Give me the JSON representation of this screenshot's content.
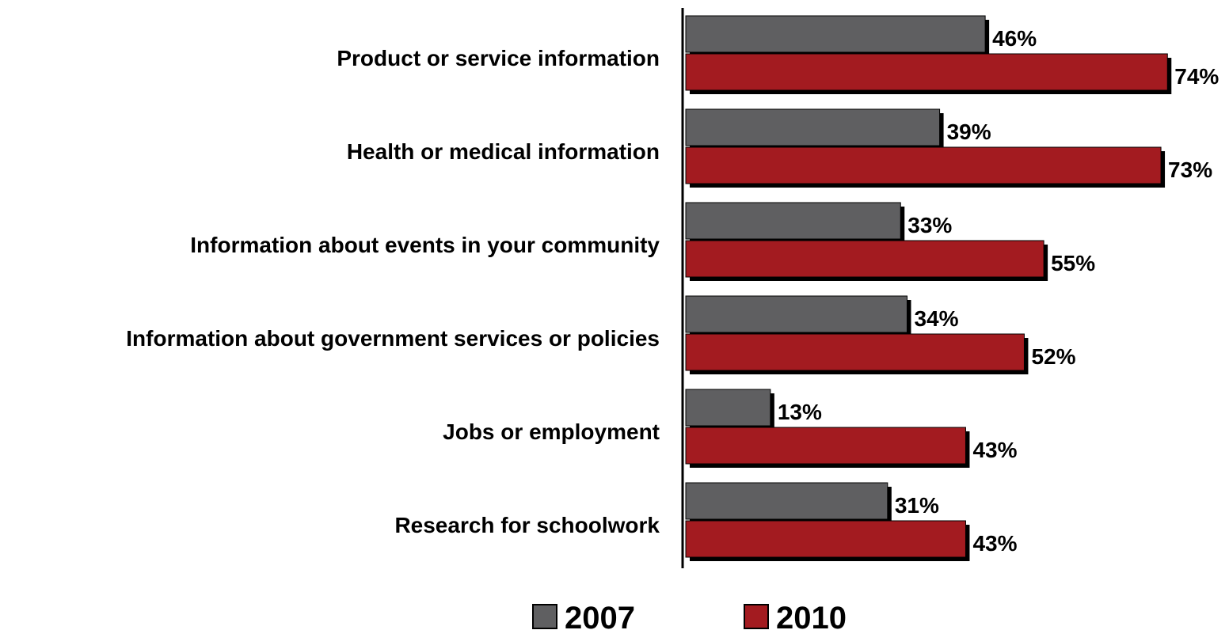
{
  "chart_data": {
    "type": "bar",
    "orientation": "horizontal",
    "categories": [
      "Product or service information",
      "Health or medical information",
      "Information about events in your community",
      "Information about government services or policies",
      "Jobs or employment",
      "Research for schoolwork"
    ],
    "series": [
      {
        "name": "2007",
        "values": [
          46,
          39,
          33,
          34,
          13,
          31
        ],
        "labels": [
          "46%",
          "39%",
          "33%",
          "34%",
          "13%",
          "31%"
        ],
        "color": "#5f5f61"
      },
      {
        "name": "2010",
        "values": [
          74,
          73,
          55,
          52,
          43,
          43
        ],
        "labels": [
          "74%",
          "73%",
          "55%",
          "52%",
          "43%",
          "43%"
        ],
        "color": "#a31b20"
      }
    ],
    "value_unit": "%",
    "xlim": [
      0,
      80
    ],
    "grid": false,
    "legend_position": "bottom"
  }
}
